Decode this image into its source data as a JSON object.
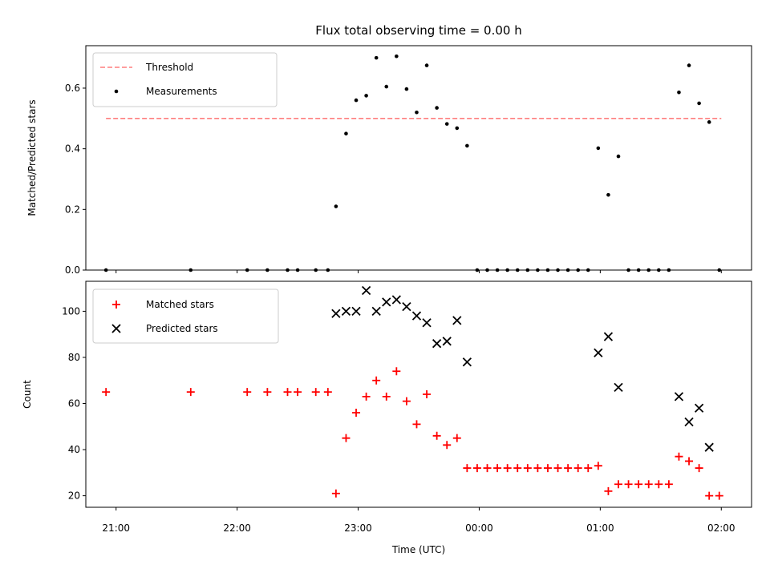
{
  "chart_data": [
    {
      "type": "scatter",
      "title": "Flux total observing time = 0.00 h",
      "xlabel": "",
      "ylabel": "Matched/Predicted stars",
      "xlim": [
        "20:45",
        "02:15"
      ],
      "ylim": [
        0,
        0.74
      ],
      "yticks": [
        "0.0",
        "0.2",
        "0.4",
        "0.6"
      ],
      "legend": "top-left",
      "threshold": {
        "name": "Threshold",
        "value": 0.5,
        "x": [
          "20:55",
          "02:00"
        ],
        "color": "#ff7f7f"
      },
      "series": [
        {
          "name": "Measurements",
          "color": "#000000",
          "points": [
            [
              "20:55",
              0.0
            ],
            [
              "21:37",
              0.0
            ],
            [
              "22:05",
              0.0
            ],
            [
              "22:15",
              0.0
            ],
            [
              "22:25",
              0.0
            ],
            [
              "22:30",
              0.0
            ],
            [
              "22:39",
              0.0
            ],
            [
              "22:45",
              0.0
            ],
            [
              "22:49",
              0.21
            ],
            [
              "22:54",
              0.45
            ],
            [
              "22:59",
              0.56
            ],
            [
              "23:04",
              0.575
            ],
            [
              "23:09",
              0.7
            ],
            [
              "23:14",
              0.605
            ],
            [
              "23:19",
              0.705
            ],
            [
              "23:24",
              0.597
            ],
            [
              "23:29",
              0.52
            ],
            [
              "23:34",
              0.675
            ],
            [
              "23:39",
              0.535
            ],
            [
              "23:44",
              0.482
            ],
            [
              "23:49",
              0.468
            ],
            [
              "23:54",
              0.41
            ],
            [
              "23:59",
              0.0
            ],
            [
              "00:04",
              0.0
            ],
            [
              "00:09",
              0.0
            ],
            [
              "00:14",
              0.0
            ],
            [
              "00:19",
              0.0
            ],
            [
              "00:24",
              0.0
            ],
            [
              "00:29",
              0.0
            ],
            [
              "00:34",
              0.0
            ],
            [
              "00:39",
              0.0
            ],
            [
              "00:44",
              0.0
            ],
            [
              "00:49",
              0.0
            ],
            [
              "00:54",
              0.0
            ],
            [
              "00:59",
              0.402
            ],
            [
              "01:04",
              0.248
            ],
            [
              "01:09",
              0.375
            ],
            [
              "01:14",
              0.0
            ],
            [
              "01:19",
              0.0
            ],
            [
              "01:24",
              0.0
            ],
            [
              "01:29",
              0.0
            ],
            [
              "01:34",
              0.0
            ],
            [
              "01:39",
              0.586
            ],
            [
              "01:44",
              0.675
            ],
            [
              "01:49",
              0.55
            ],
            [
              "01:54",
              0.488
            ],
            [
              "01:59",
              0.0
            ]
          ]
        }
      ]
    },
    {
      "type": "scatter",
      "title": "",
      "xlabel": "Time (UTC)",
      "ylabel": "Count",
      "xlim": [
        "20:45",
        "02:15"
      ],
      "ylim": [
        15,
        113
      ],
      "xticks": [
        "21:00",
        "22:00",
        "23:00",
        "00:00",
        "01:00",
        "02:00"
      ],
      "yticks": [
        "20",
        "40",
        "60",
        "80",
        "100"
      ],
      "legend": "top-left",
      "series": [
        {
          "name": "Matched stars",
          "marker": "+",
          "color": "#ff0000",
          "points": [
            [
              "20:55",
              65
            ],
            [
              "21:37",
              65
            ],
            [
              "22:05",
              65
            ],
            [
              "22:15",
              65
            ],
            [
              "22:25",
              65
            ],
            [
              "22:30",
              65
            ],
            [
              "22:39",
              65
            ],
            [
              "22:45",
              65
            ],
            [
              "22:49",
              21
            ],
            [
              "22:54",
              45
            ],
            [
              "22:59",
              56
            ],
            [
              "23:04",
              63
            ],
            [
              "23:09",
              70
            ],
            [
              "23:14",
              63
            ],
            [
              "23:19",
              74
            ],
            [
              "23:24",
              61
            ],
            [
              "23:29",
              51
            ],
            [
              "23:34",
              64
            ],
            [
              "23:39",
              46
            ],
            [
              "23:44",
              42
            ],
            [
              "23:49",
              45
            ],
            [
              "23:54",
              32
            ],
            [
              "23:59",
              32
            ],
            [
              "00:04",
              32
            ],
            [
              "00:09",
              32
            ],
            [
              "00:14",
              32
            ],
            [
              "00:19",
              32
            ],
            [
              "00:24",
              32
            ],
            [
              "00:29",
              32
            ],
            [
              "00:34",
              32
            ],
            [
              "00:39",
              32
            ],
            [
              "00:44",
              32
            ],
            [
              "00:49",
              32
            ],
            [
              "00:54",
              32
            ],
            [
              "00:59",
              33
            ],
            [
              "01:04",
              22
            ],
            [
              "01:09",
              25
            ],
            [
              "01:14",
              25
            ],
            [
              "01:19",
              25
            ],
            [
              "01:24",
              25
            ],
            [
              "01:29",
              25
            ],
            [
              "01:34",
              25
            ],
            [
              "01:39",
              37
            ],
            [
              "01:44",
              35
            ],
            [
              "01:49",
              32
            ],
            [
              "01:54",
              20
            ],
            [
              "01:59",
              20
            ]
          ]
        },
        {
          "name": "Predicted stars",
          "marker": "x",
          "color": "#000000",
          "points": [
            [
              "22:49",
              99
            ],
            [
              "22:54",
              100
            ],
            [
              "22:59",
              100
            ],
            [
              "23:04",
              109
            ],
            [
              "23:09",
              100
            ],
            [
              "23:14",
              104
            ],
            [
              "23:19",
              105
            ],
            [
              "23:24",
              102
            ],
            [
              "23:29",
              98
            ],
            [
              "23:34",
              95
            ],
            [
              "23:39",
              86
            ],
            [
              "23:44",
              87
            ],
            [
              "23:49",
              96
            ],
            [
              "23:54",
              78
            ],
            [
              "00:59",
              82
            ],
            [
              "01:04",
              89
            ],
            [
              "01:09",
              67
            ],
            [
              "01:39",
              63
            ],
            [
              "01:44",
              52
            ],
            [
              "01:49",
              58
            ],
            [
              "01:54",
              41
            ]
          ]
        }
      ]
    }
  ]
}
